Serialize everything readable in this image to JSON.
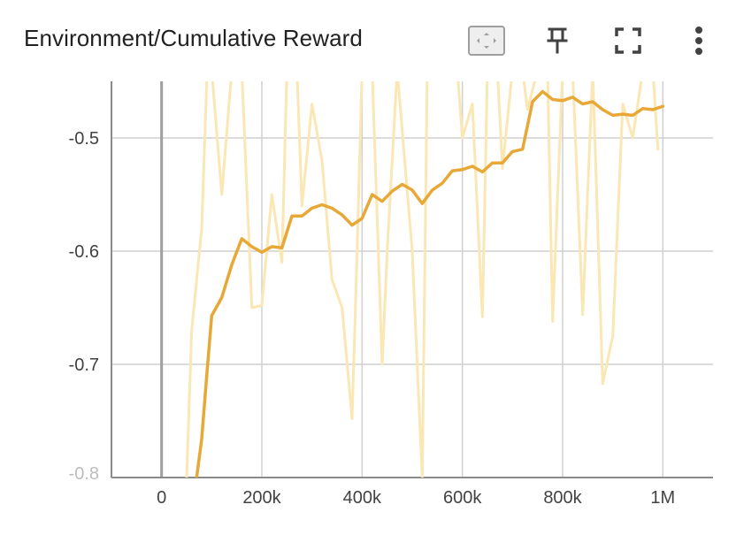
{
  "card": {
    "title": "Environment/Cumulative Reward"
  },
  "toolbar": {
    "fit_domain_icon": "fit-domain-icon",
    "pin_icon": "pin-icon",
    "fullscreen_icon": "fullscreen-icon",
    "more_icon": "more-vert-icon"
  },
  "colors": {
    "smoothed": "#e8a838",
    "raw": "#fbe7b4",
    "grid": "#d0d0d0",
    "zero_axis": "#9e9e9e",
    "text": "#424242"
  },
  "chart_data": {
    "type": "line",
    "title": "Environment/Cumulative Reward",
    "xlabel": "",
    "ylabel": "",
    "xlim": [
      -100000,
      1100000
    ],
    "ylim": [
      -0.8,
      -0.45
    ],
    "x_ticks": [
      0,
      200000,
      400000,
      600000,
      800000,
      1000000
    ],
    "x_tick_labels": [
      "0",
      "200k",
      "400k",
      "600k",
      "800k",
      "1M"
    ],
    "y_ticks": [
      -0.8,
      -0.7,
      -0.6,
      -0.5
    ],
    "y_tick_labels": [
      "-0.8",
      "-0.7",
      "-0.6",
      "-0.5"
    ],
    "grid": true,
    "series": [
      {
        "role": "raw",
        "x": [
          50000,
          60000,
          80000,
          90000,
          100000,
          120000,
          140000,
          160000,
          180000,
          200000,
          220000,
          240000,
          250000,
          270000,
          280000,
          300000,
          320000,
          340000,
          360000,
          380000,
          390000,
          400000,
          420000,
          440000,
          450000,
          470000,
          500000,
          520000,
          530000,
          560000,
          590000,
          600000,
          620000,
          640000,
          650000,
          670000,
          680000,
          700000,
          720000,
          730000,
          750000,
          770000,
          780000,
          800000,
          820000,
          840000,
          860000,
          880000,
          900000,
          920000,
          940000,
          960000,
          980000,
          990000
        ],
        "y": [
          -0.8,
          -0.67,
          -0.58,
          -0.45,
          -0.44,
          -0.55,
          -0.44,
          -0.44,
          -0.65,
          -0.648,
          -0.55,
          -0.61,
          -0.44,
          -0.44,
          -0.56,
          -0.47,
          -0.52,
          -0.625,
          -0.65,
          -0.748,
          -0.6,
          -0.44,
          -0.44,
          -0.7,
          -0.6,
          -0.44,
          -0.6,
          -0.8,
          -0.44,
          -0.44,
          -0.44,
          -0.5,
          -0.47,
          -0.658,
          -0.44,
          -0.44,
          -0.527,
          -0.44,
          -0.44,
          -0.475,
          -0.44,
          -0.44,
          -0.662,
          -0.44,
          -0.44,
          -0.656,
          -0.44,
          -0.717,
          -0.675,
          -0.47,
          -0.5,
          -0.44,
          -0.44,
          -0.51
        ]
      },
      {
        "role": "smoothed",
        "x": [
          70000,
          80000,
          90000,
          100000,
          120000,
          140000,
          160000,
          180000,
          200000,
          220000,
          240000,
          260000,
          280000,
          300000,
          320000,
          340000,
          360000,
          380000,
          400000,
          420000,
          440000,
          460000,
          480000,
          500000,
          520000,
          540000,
          560000,
          580000,
          600000,
          620000,
          640000,
          660000,
          680000,
          700000,
          720000,
          740000,
          760000,
          780000,
          800000,
          820000,
          840000,
          860000,
          880000,
          900000,
          920000,
          940000,
          960000,
          980000,
          1000000
        ],
        "y": [
          -0.8,
          -0.766,
          -0.71,
          -0.657,
          -0.641,
          -0.612,
          -0.589,
          -0.596,
          -0.601,
          -0.596,
          -0.597,
          -0.569,
          -0.569,
          -0.562,
          -0.559,
          -0.562,
          -0.568,
          -0.577,
          -0.571,
          -0.55,
          -0.556,
          -0.547,
          -0.541,
          -0.546,
          -0.558,
          -0.546,
          -0.54,
          -0.529,
          -0.528,
          -0.525,
          -0.53,
          -0.522,
          -0.522,
          -0.512,
          -0.51,
          -0.468,
          -0.459,
          -0.466,
          -0.467,
          -0.464,
          -0.47,
          -0.468,
          -0.475,
          -0.48,
          -0.479,
          -0.48,
          -0.474,
          -0.475,
          -0.472
        ]
      }
    ]
  }
}
